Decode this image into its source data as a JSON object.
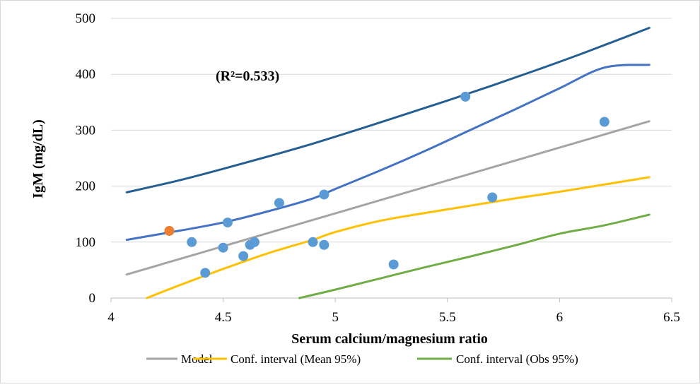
{
  "chart_data": {
    "type": "scatter",
    "title": "",
    "xlabel": "Serum calcium/magnesium ratio",
    "ylabel": "IgM (mg/dL)",
    "xlim": [
      4,
      6.5
    ],
    "ylim": [
      0,
      500
    ],
    "xticks": [
      "4",
      "4.5",
      "5",
      "5.5",
      "6",
      "6.5"
    ],
    "yticks": [
      "0",
      "100",
      "200",
      "300",
      "400",
      "500"
    ],
    "grid": "horizontal",
    "annotation": "(R²=0.533)",
    "legend_position": "bottom",
    "legend": [
      {
        "label": "Model",
        "color": "#a5a5a5"
      },
      {
        "label": "Conf. interval (Mean 95%)",
        "color": "#ffc000"
      },
      {
        "label": "Conf. interval (Obs 95%)",
        "color": "#70ad47"
      }
    ],
    "colors": {
      "points": "#5b9bd5",
      "highlight_point": "#ed7d31",
      "model": "#a5a5a5",
      "mean_ci_upper": "#4472c4",
      "mean_ci_lower": "#ffc000",
      "obs_ci_upper": "#255e91",
      "obs_ci_lower": "#70ad47"
    },
    "points": [
      {
        "x": 4.26,
        "y": 120,
        "highlight": true
      },
      {
        "x": 4.36,
        "y": 100
      },
      {
        "x": 4.42,
        "y": 45
      },
      {
        "x": 4.5,
        "y": 90
      },
      {
        "x": 4.52,
        "y": 135
      },
      {
        "x": 4.59,
        "y": 75
      },
      {
        "x": 4.62,
        "y": 95
      },
      {
        "x": 4.64,
        "y": 100
      },
      {
        "x": 4.75,
        "y": 170
      },
      {
        "x": 4.9,
        "y": 100
      },
      {
        "x": 4.95,
        "y": 185
      },
      {
        "x": 4.95,
        "y": 95
      },
      {
        "x": 5.26,
        "y": 60
      },
      {
        "x": 5.58,
        "y": 360
      },
      {
        "x": 5.7,
        "y": 180
      },
      {
        "x": 6.2,
        "y": 315
      }
    ],
    "series": [
      {
        "role": "model",
        "x": [
          4.07,
          6.4
        ],
        "y": [
          42,
          316
        ]
      },
      {
        "role": "mean_ci_upper",
        "x": [
          4.07,
          4.3,
          4.5,
          4.7,
          4.9,
          5.0,
          5.2,
          5.4,
          5.6,
          5.8,
          6.0,
          6.2,
          6.4
        ],
        "y": [
          104,
          120,
          135,
          155,
          178,
          195,
          228,
          263,
          300,
          337,
          375,
          412,
          417
        ]
      },
      {
        "role": "mean_ci_lower",
        "x": [
          4.16,
          4.3,
          4.5,
          4.7,
          4.9,
          5.0,
          5.2,
          5.4,
          5.6,
          5.8,
          6.0,
          6.2,
          6.4
        ],
        "y": [
          0,
          22,
          52,
          80,
          104,
          118,
          138,
          152,
          165,
          178,
          190,
          203,
          216
        ]
      },
      {
        "role": "obs_ci_upper",
        "x": [
          4.07,
          4.3,
          4.5,
          4.7,
          4.9,
          5.1,
          5.3,
          5.5,
          5.7,
          5.9,
          6.1,
          6.4
        ],
        "y": [
          189,
          210,
          231,
          253,
          276,
          301,
          327,
          353,
          380,
          408,
          437,
          483
        ]
      },
      {
        "role": "obs_ci_lower",
        "x": [
          4.84,
          5.0,
          5.2,
          5.4,
          5.6,
          5.8,
          6.0,
          6.2,
          6.4
        ],
        "y": [
          0,
          15,
          35,
          55,
          74,
          94,
          115,
          130,
          149
        ]
      }
    ]
  }
}
